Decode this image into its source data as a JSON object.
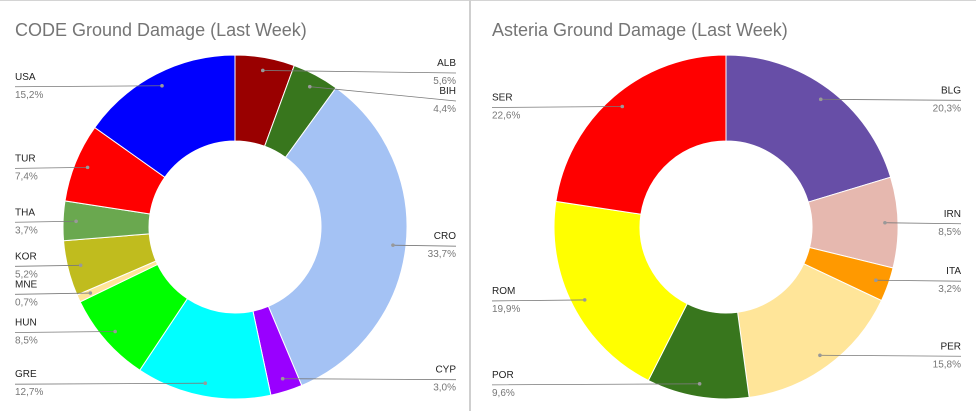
{
  "chart_data": [
    {
      "type": "pie",
      "title": "CODE Ground Damage (Last Week)",
      "donut": true,
      "slices": [
        {
          "label": "ALB",
          "value": 5.6,
          "value_label": "5,6%",
          "color": "#990000",
          "side": "right"
        },
        {
          "label": "BIH",
          "value": 4.4,
          "value_label": "4,4%",
          "color": "#38761d",
          "side": "right"
        },
        {
          "label": "CRO",
          "value": 33.7,
          "value_label": "33,7%",
          "color": "#a4c2f4",
          "side": "right"
        },
        {
          "label": "CYP",
          "value": 3.0,
          "value_label": "3,0%",
          "color": "#9900ff",
          "side": "right"
        },
        {
          "label": "GRE",
          "value": 12.7,
          "value_label": "12,7%",
          "color": "#00ffff",
          "side": "left"
        },
        {
          "label": "HUN",
          "value": 8.5,
          "value_label": "8,5%",
          "color": "#00ff00",
          "side": "left"
        },
        {
          "label": "MNE",
          "value": 0.7,
          "value_label": "0,7%",
          "color": "#ffe599",
          "side": "left"
        },
        {
          "label": "KOR",
          "value": 5.2,
          "value_label": "5,2%",
          "color": "#c0bc1e",
          "side": "left"
        },
        {
          "label": "THA",
          "value": 3.7,
          "value_label": "3,7%",
          "color": "#6aa84f",
          "side": "left"
        },
        {
          "label": "TUR",
          "value": 7.4,
          "value_label": "7,4%",
          "color": "#ff0000",
          "side": "left"
        },
        {
          "label": "USA",
          "value": 15.2,
          "value_label": "15,2%",
          "color": "#0000ff",
          "side": "left"
        }
      ]
    },
    {
      "type": "pie",
      "title": "Asteria Ground Damage (Last Week)",
      "donut": true,
      "slices": [
        {
          "label": "BLG",
          "value": 20.3,
          "value_label": "20,3%",
          "color": "#674ea7",
          "side": "right"
        },
        {
          "label": "IRN",
          "value": 8.5,
          "value_label": "8,5%",
          "color": "#e6b8af",
          "side": "right"
        },
        {
          "label": "ITA",
          "value": 3.2,
          "value_label": "3,2%",
          "color": "#ff9900",
          "side": "right"
        },
        {
          "label": "PER",
          "value": 15.8,
          "value_label": "15,8%",
          "color": "#ffe599",
          "side": "right"
        },
        {
          "label": "POR",
          "value": 9.6,
          "value_label": "9,6%",
          "color": "#38761d",
          "side": "left"
        },
        {
          "label": "ROM",
          "value": 19.9,
          "value_label": "19,9%",
          "color": "#ffff00",
          "side": "left"
        },
        {
          "label": "SER",
          "value": 22.6,
          "value_label": "22,6%",
          "color": "#ff0000",
          "side": "left"
        }
      ]
    }
  ]
}
